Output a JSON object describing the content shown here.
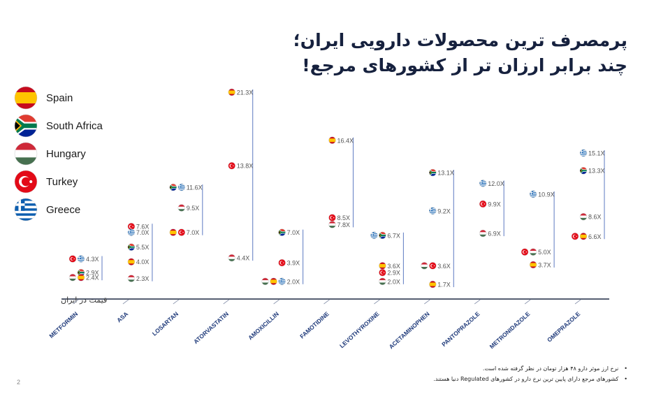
{
  "title": {
    "line1": "پرمصرف ترین محصولات دارویی ایران؛",
    "line2": "چند برابر ارزان تر از کشورهای مرجع!"
  },
  "legend": [
    {
      "key": "spain",
      "label": "Spain"
    },
    {
      "key": "south_africa",
      "label": "South Africa"
    },
    {
      "key": "hungary",
      "label": "Hungary"
    },
    {
      "key": "turkey",
      "label": "Turkey"
    },
    {
      "key": "greece",
      "label": "Greece"
    }
  ],
  "baseline_label": "قیمت در ایران",
  "footnotes": [
    "نرخ ارز موثر دارو ۴۸ هزار تومان در نظر گرفته شده است.",
    "کشورهای مرجع دارای پایین ترین نرخ دارو در کشورهای Regulated دنیا هستند."
  ],
  "page_number": "2",
  "colors": {
    "spain_red": "#c60b1e",
    "spain_yellow": "#ffc400",
    "sa_green": "#007a4d",
    "sa_black": "#000000",
    "sa_yellow": "#ffb612",
    "sa_red": "#e03c31",
    "sa_blue": "#002395",
    "hungary_red": "#ce2939",
    "hungary_green": "#477050",
    "turkey_red": "#e30a17",
    "greece_blue": "#0d5eaf",
    "bracket": "#6b86c7",
    "axis": "#1f2a44",
    "label": "#1f3a7a"
  },
  "chart_data": {
    "type": "scatter",
    "ylim": [
      0,
      22
    ],
    "categories": [
      "METFORMIN",
      "ASA",
      "LOSARTAN",
      "ATORVASTATIN",
      "AMOXICILLIN",
      "FAMOTIDINE",
      "LEVOTHYROXINE",
      "ACETAMINOPHEN",
      "PANTOPRAZOLE",
      "METRONIDAZOLE",
      "OMEPRAZOLE"
    ],
    "points": [
      {
        "cat": 0,
        "y": 4.3,
        "label": "4.3X",
        "flags": [
          "turkey",
          "greece"
        ]
      },
      {
        "cat": 0,
        "y": 2.9,
        "label": "2.9X",
        "flags": [
          "south_africa"
        ]
      },
      {
        "cat": 0,
        "y": 2.4,
        "label": "2.4X",
        "flags": [
          "hungary",
          "spain"
        ]
      },
      {
        "cat": 1,
        "y": 7.6,
        "label": "7.6X",
        "flags": [
          "turkey"
        ]
      },
      {
        "cat": 1,
        "y": 7.0,
        "label": "7.0X",
        "flags": [
          "greece"
        ]
      },
      {
        "cat": 1,
        "y": 5.5,
        "label": "5.5X",
        "flags": [
          "south_africa"
        ]
      },
      {
        "cat": 1,
        "y": 4.0,
        "label": "4.0X",
        "flags": [
          "spain"
        ]
      },
      {
        "cat": 1,
        "y": 2.3,
        "label": "2.3X",
        "flags": [
          "hungary"
        ]
      },
      {
        "cat": 2,
        "y": 11.6,
        "label": "11.6X",
        "flags": [
          "south_africa",
          "greece"
        ]
      },
      {
        "cat": 2,
        "y": 9.5,
        "label": "9.5X",
        "flags": [
          "hungary"
        ]
      },
      {
        "cat": 2,
        "y": 7.0,
        "label": "7.0X",
        "flags": [
          "spain",
          "turkey"
        ]
      },
      {
        "cat": 3,
        "y": 21.3,
        "label": "21.3X",
        "flags": [
          "spain"
        ]
      },
      {
        "cat": 3,
        "y": 13.8,
        "label": "13.8X",
        "flags": [
          "turkey"
        ]
      },
      {
        "cat": 3,
        "y": 4.4,
        "label": "4.4X",
        "flags": [
          "hungary"
        ]
      },
      {
        "cat": 4,
        "y": 7.0,
        "label": "7.0X",
        "flags": [
          "south_africa"
        ]
      },
      {
        "cat": 4,
        "y": 3.9,
        "label": "3.9X",
        "flags": [
          "turkey"
        ]
      },
      {
        "cat": 4,
        "y": 2.0,
        "label": "2.0X",
        "flags": [
          "hungary",
          "spain",
          "greece"
        ]
      },
      {
        "cat": 5,
        "y": 16.4,
        "label": "16.4X",
        "flags": [
          "spain"
        ]
      },
      {
        "cat": 5,
        "y": 8.5,
        "label": "8.5X",
        "flags": [
          "turkey"
        ]
      },
      {
        "cat": 5,
        "y": 7.8,
        "label": "7.8X",
        "flags": [
          "hungary"
        ]
      },
      {
        "cat": 6,
        "y": 6.7,
        "label": "6.7X",
        "flags": [
          "greece",
          "south_africa"
        ]
      },
      {
        "cat": 6,
        "y": 3.6,
        "label": "3.6X",
        "flags": [
          "spain"
        ]
      },
      {
        "cat": 6,
        "y": 2.9,
        "label": "2.9X",
        "flags": [
          "turkey"
        ]
      },
      {
        "cat": 6,
        "y": 2.0,
        "label": "2.0X",
        "flags": [
          "hungary"
        ]
      },
      {
        "cat": 7,
        "y": 13.1,
        "label": "13.1X",
        "flags": [
          "south_africa"
        ]
      },
      {
        "cat": 7,
        "y": 9.2,
        "label": "9.2X",
        "flags": [
          "greece"
        ]
      },
      {
        "cat": 7,
        "y": 3.6,
        "label": "3.6X",
        "flags": [
          "hungary",
          "turkey"
        ]
      },
      {
        "cat": 7,
        "y": 1.7,
        "label": "1.7X",
        "flags": [
          "spain"
        ]
      },
      {
        "cat": 8,
        "y": 12.0,
        "label": "12.0X",
        "flags": [
          "greece"
        ]
      },
      {
        "cat": 8,
        "y": 9.9,
        "label": "9.9X",
        "flags": [
          "turkey"
        ]
      },
      {
        "cat": 8,
        "y": 6.9,
        "label": "6.9X",
        "flags": [
          "hungary"
        ]
      },
      {
        "cat": 9,
        "y": 10.9,
        "label": "10.9X",
        "flags": [
          "greece"
        ]
      },
      {
        "cat": 9,
        "y": 5.0,
        "label": "5.0X",
        "flags": [
          "turkey",
          "hungary"
        ]
      },
      {
        "cat": 9,
        "y": 3.7,
        "label": "3.7X",
        "flags": [
          "spain"
        ]
      },
      {
        "cat": 10,
        "y": 15.1,
        "label": "15.1X",
        "flags": [
          "greece"
        ]
      },
      {
        "cat": 10,
        "y": 13.3,
        "label": "13.3X",
        "flags": [
          "south_africa"
        ]
      },
      {
        "cat": 10,
        "y": 8.6,
        "label": "8.6X",
        "flags": [
          "hungary"
        ]
      },
      {
        "cat": 10,
        "y": 6.6,
        "label": "6.6X",
        "flags": [
          "turkey",
          "spain"
        ]
      }
    ]
  }
}
